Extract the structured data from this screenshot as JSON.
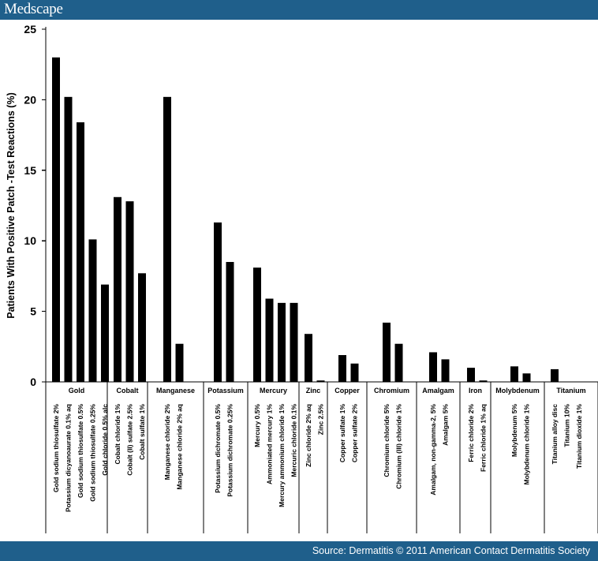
{
  "header": {
    "brand": "Medscape"
  },
  "footer": {
    "source": "Source: Dermatitis © 2011 American Contact Dermatitis Society"
  },
  "colors": {
    "brand": "#1f5f8b",
    "bar": "#000000"
  },
  "chart_data": {
    "type": "bar",
    "title": "",
    "xlabel": "",
    "ylabel": "Patients With Positive Patch -Test Reactions (%)",
    "ylim": [
      0,
      25
    ],
    "yticks": [
      0,
      5,
      10,
      15,
      20,
      25
    ],
    "grid": false,
    "groups": [
      {
        "name": "Gold",
        "items": [
          {
            "label": "Gold sodium thiosulfate 2%",
            "value": 23.0
          },
          {
            "label": "Potassium dicyanoaurate 0.1% aq",
            "value": 20.2
          },
          {
            "label": "Gold sodium thiosulfate 0.5%",
            "value": 18.4
          },
          {
            "label": "Gold sodium thiosulfate 0.25%",
            "value": 10.1
          },
          {
            "label": "Gold chloride 0.5% alc",
            "value": 6.9
          }
        ]
      },
      {
        "name": "Cobalt",
        "items": [
          {
            "label": "Cobalt chloride 1%",
            "value": 13.1
          },
          {
            "label": "Cobalt (II) sulfate 2.5%",
            "value": 12.8
          },
          {
            "label": "Cobalt sulfate 1%",
            "value": 7.7
          }
        ]
      },
      {
        "name": "Manganese",
        "items": [
          {
            "label": "Manganese chloride 2%",
            "value": 20.2
          },
          {
            "label": "Manganese chloride 2% aq",
            "value": 2.7
          }
        ]
      },
      {
        "name": "Potassium",
        "items": [
          {
            "label": "Potassium dichromate 0.5%",
            "value": 11.3
          },
          {
            "label": "Potassium dichromate 0.25%",
            "value": 8.5
          }
        ]
      },
      {
        "name": "Mercury",
        "items": [
          {
            "label": "Mercury 0.5%",
            "value": 8.1
          },
          {
            "label": "Ammoniated mercury 1%",
            "value": 5.9
          },
          {
            "label": "Mercury ammonium chloride 1%",
            "value": 5.6
          },
          {
            "label": "Mercuric chloride 0.1%",
            "value": 5.6
          }
        ]
      },
      {
        "name": "Zinc",
        "items": [
          {
            "label": "Zinc chloride 2% aq",
            "value": 3.4
          },
          {
            "label": "Zinc 2.5%",
            "value": 0.1
          }
        ]
      },
      {
        "name": "Copper",
        "items": [
          {
            "label": "Copper sulfate 1%",
            "value": 1.9
          },
          {
            "label": "Copper sulfate 2%",
            "value": 1.3
          }
        ]
      },
      {
        "name": "Chromium",
        "items": [
          {
            "label": "Chromium chloride 5%",
            "value": 4.2
          },
          {
            "label": "Chromium (III) chloride 1%",
            "value": 2.7
          }
        ]
      },
      {
        "name": "Amalgam",
        "items": [
          {
            "label": "Amalgam, non-gamma-2, 5%",
            "value": 2.1
          },
          {
            "label": "Amalgam 5%",
            "value": 1.6
          }
        ]
      },
      {
        "name": "Iron",
        "items": [
          {
            "label": "Ferric chloride 2%",
            "value": 1.0
          },
          {
            "label": "Ferric chloride 1% aq",
            "value": 0.1
          }
        ]
      },
      {
        "name": "Molybdenum",
        "items": [
          {
            "label": "Molybdenum 5%",
            "value": 1.1
          },
          {
            "label": "Molybdenum chloride 1%",
            "value": 0.6
          }
        ]
      },
      {
        "name": "Titanium",
        "items": [
          {
            "label": "Titanium alloy disc",
            "value": 0.9
          },
          {
            "label": "Titanium 10%",
            "value": 0
          },
          {
            "label": "Titanium dioxide 1%",
            "value": 0
          }
        ]
      }
    ]
  }
}
